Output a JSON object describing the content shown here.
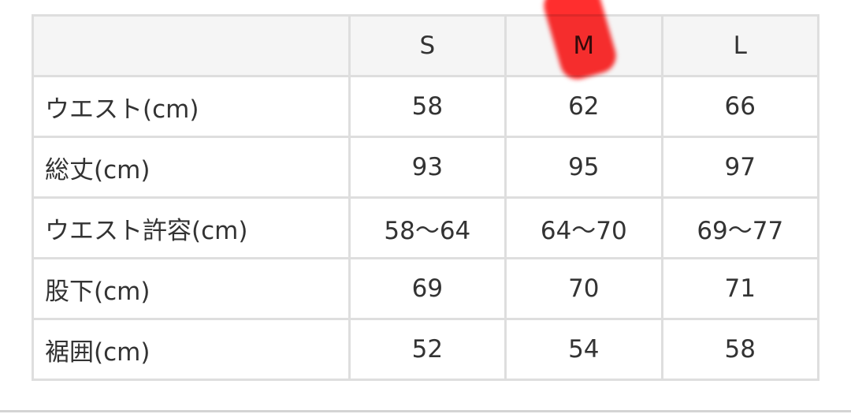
{
  "table": {
    "headers": [
      "",
      "S",
      "M",
      "L"
    ],
    "rows": [
      {
        "label": "ウエスト(cm)",
        "values": [
          "58",
          "62",
          "66"
        ]
      },
      {
        "label": "総丈(cm)",
        "values": [
          "93",
          "95",
          "97"
        ]
      },
      {
        "label": "ウエスト許容(cm)",
        "values": [
          "58〜64",
          "64〜70",
          "69〜77"
        ]
      },
      {
        "label": "股下(cm)",
        "values": [
          "69",
          "70",
          "71"
        ]
      },
      {
        "label": "裾囲(cm)",
        "values": [
          "52",
          "54",
          "58"
        ]
      }
    ]
  },
  "highlight": {
    "column": "M",
    "color": "#ff0000"
  }
}
